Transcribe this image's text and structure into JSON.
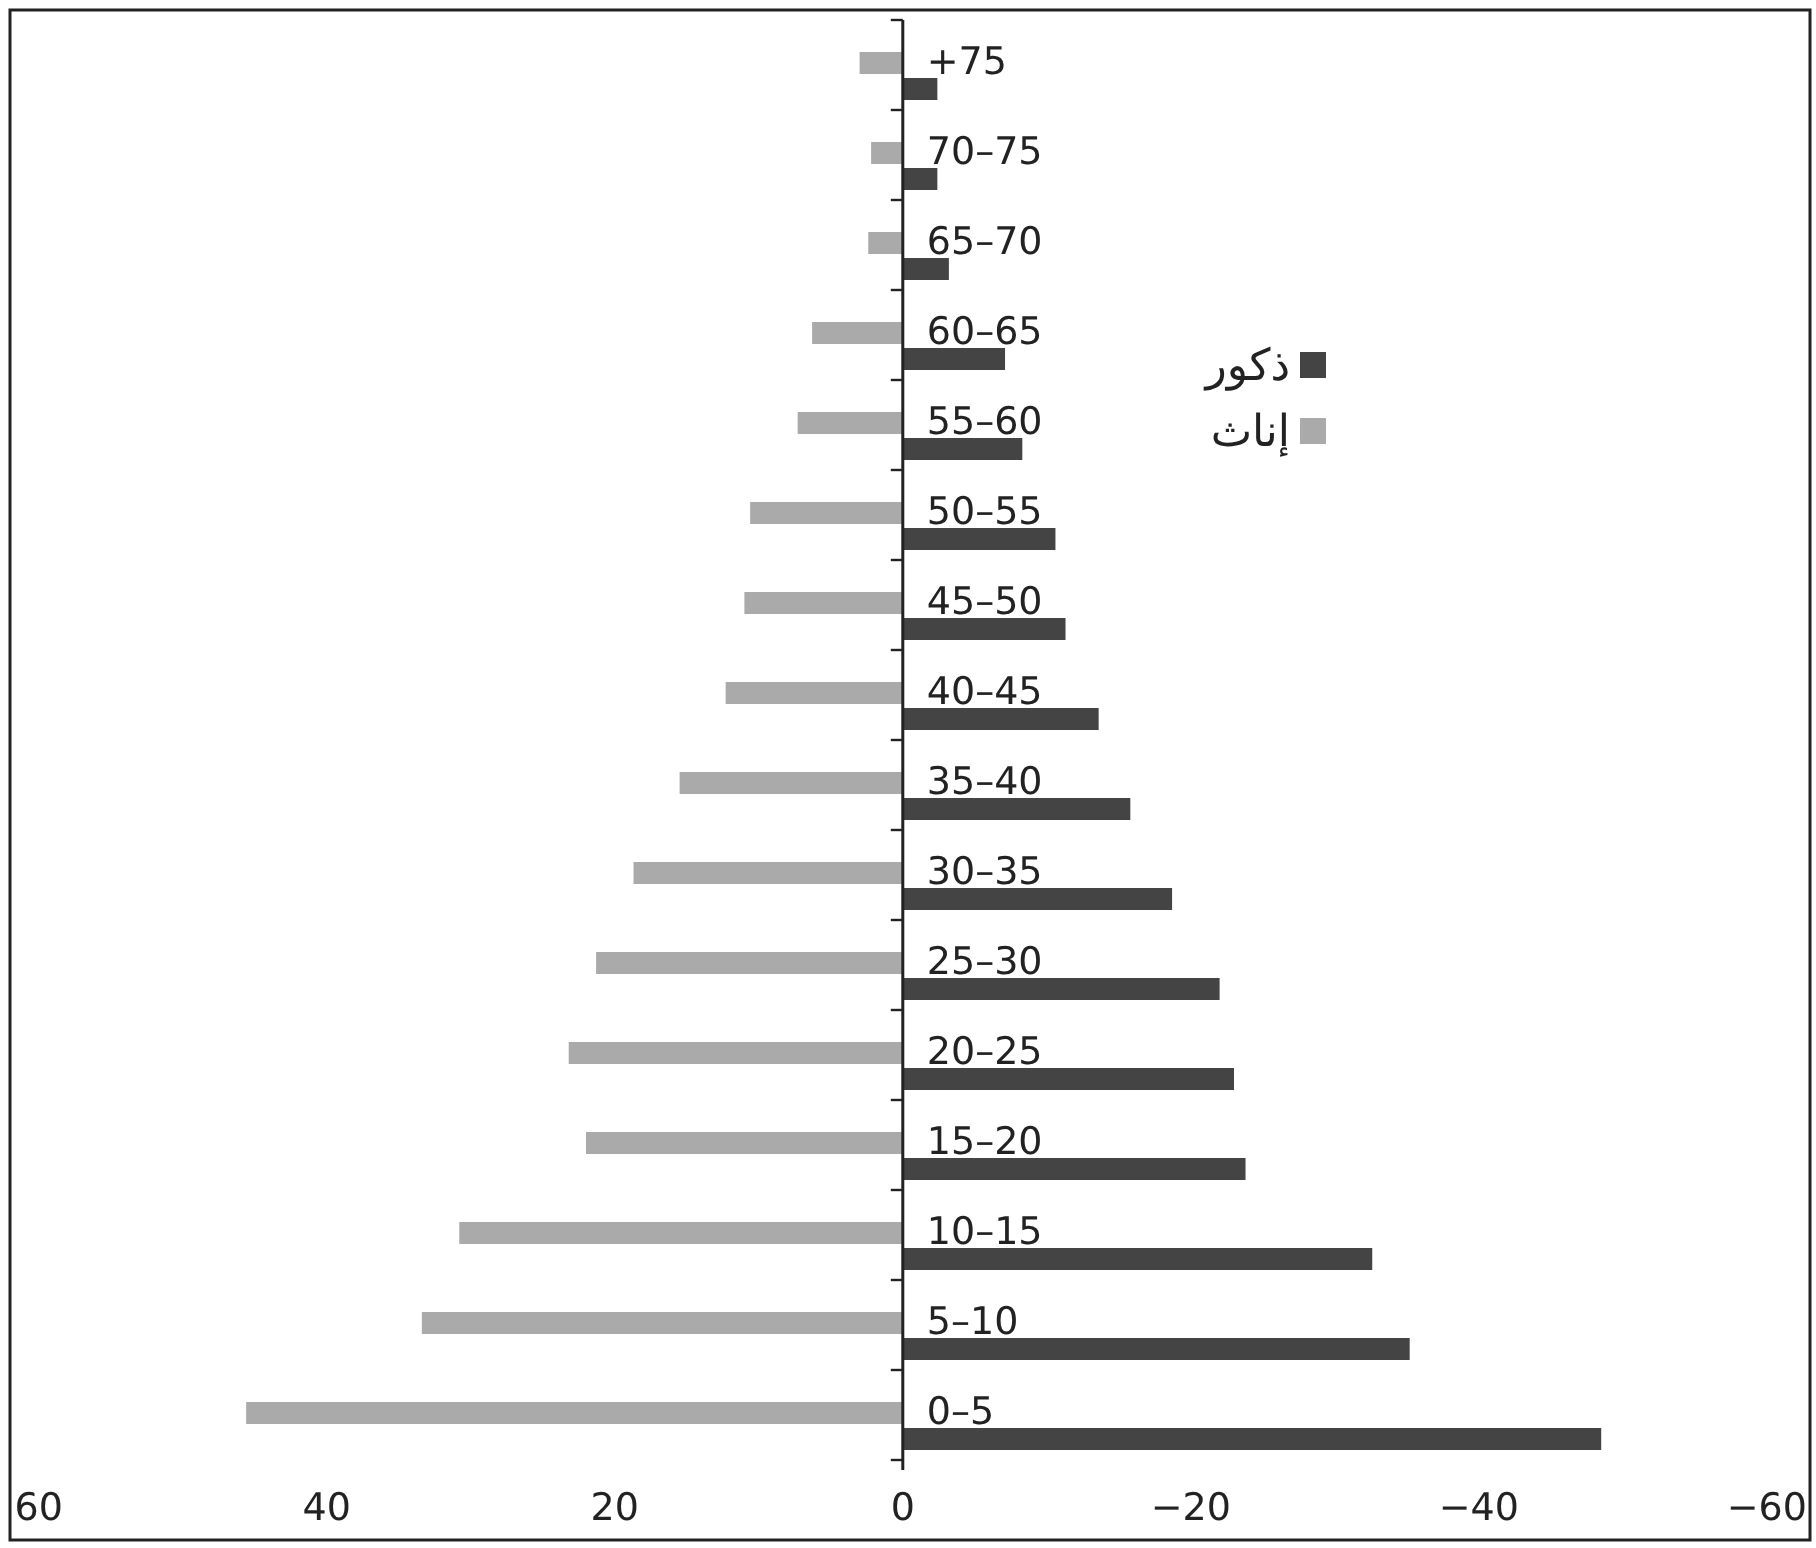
{
  "chart_data": {
    "type": "bar",
    "orientation": "horizontal",
    "categories": [
      "+75",
      "70–75",
      "65–70",
      "60–65",
      "55–60",
      "50–55",
      "45–50",
      "40–45",
      "35–40",
      "30–35",
      "25–30",
      "20–25",
      "15–20",
      "10–15",
      "5–10",
      "0–5"
    ],
    "series": [
      {
        "name": "ذكور",
        "color": "#444444",
        "values": [
          -2.4,
          -2.4,
          -3.2,
          -7.1,
          -8.3,
          -10.6,
          -11.3,
          -13.6,
          -15.8,
          -18.7,
          -22,
          -23,
          -23.8,
          -32.6,
          -35.2,
          -48.5
        ]
      },
      {
        "name": "إناث",
        "color": "#aaaaaa",
        "values": [
          3,
          2.2,
          2.4,
          6.3,
          7.3,
          10.6,
          11,
          12.3,
          15.5,
          18.7,
          21.3,
          23.2,
          22,
          30.8,
          33.4,
          45.6
        ]
      }
    ],
    "xlim": [
      62,
      -63
    ],
    "xticks": [
      60,
      40,
      20,
      0,
      {
        "value": -20,
        "label": "−20"
      },
      {
        "value": -40,
        "label": "−40"
      },
      {
        "value": -60,
        "label": "−60"
      }
    ],
    "legend": "top right"
  }
}
